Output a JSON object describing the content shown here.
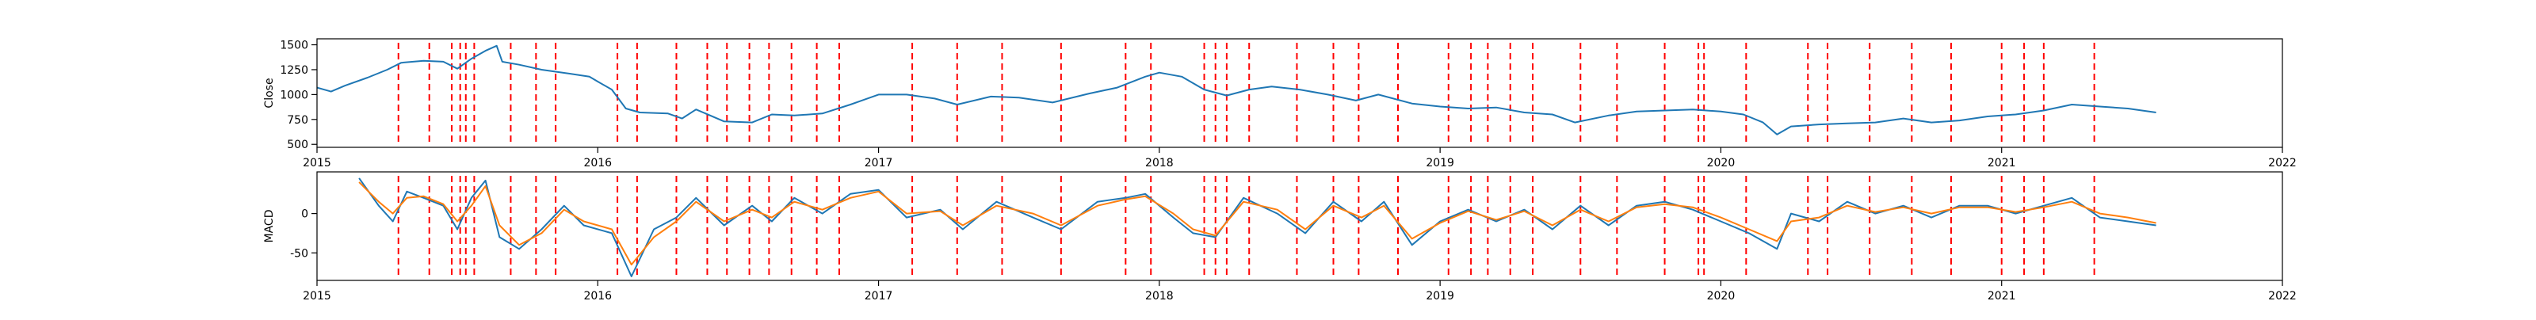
{
  "chart_data": [
    {
      "type": "line",
      "ylabel": "Close",
      "xlim": [
        2015.0,
        2022.0
      ],
      "ylim": [
        470,
        1560
      ],
      "x_ticks": [
        "2015",
        "2016",
        "2017",
        "2018",
        "2019",
        "2020",
        "2021",
        "2022"
      ],
      "y_ticks": [
        "500",
        "750",
        "1000",
        "1250",
        "1500"
      ],
      "series": [
        {
          "color": "#1f77b4",
          "points": [
            [
              2015.0,
              1070
            ],
            [
              2015.05,
              1030
            ],
            [
              2015.1,
              1090
            ],
            [
              2015.18,
              1170
            ],
            [
              2015.25,
              1250
            ],
            [
              2015.3,
              1320
            ],
            [
              2015.38,
              1340
            ],
            [
              2015.45,
              1330
            ],
            [
              2015.5,
              1260
            ],
            [
              2015.55,
              1360
            ],
            [
              2015.6,
              1440
            ],
            [
              2015.64,
              1490
            ],
            [
              2015.66,
              1330
            ],
            [
              2015.72,
              1300
            ],
            [
              2015.8,
              1250
            ],
            [
              2015.9,
              1210
            ],
            [
              2015.97,
              1180
            ],
            [
              2016.0,
              1130
            ],
            [
              2016.05,
              1050
            ],
            [
              2016.1,
              860
            ],
            [
              2016.15,
              820
            ],
            [
              2016.25,
              810
            ],
            [
              2016.3,
              760
            ],
            [
              2016.35,
              850
            ],
            [
              2016.45,
              730
            ],
            [
              2016.55,
              720
            ],
            [
              2016.62,
              800
            ],
            [
              2016.7,
              790
            ],
            [
              2016.8,
              810
            ],
            [
              2016.9,
              900
            ],
            [
              2017.0,
              1000
            ],
            [
              2017.1,
              1000
            ],
            [
              2017.2,
              960
            ],
            [
              2017.28,
              900
            ],
            [
              2017.4,
              980
            ],
            [
              2017.5,
              970
            ],
            [
              2017.62,
              920
            ],
            [
              2017.75,
              1010
            ],
            [
              2017.85,
              1070
            ],
            [
              2017.95,
              1180
            ],
            [
              2018.0,
              1220
            ],
            [
              2018.08,
              1180
            ],
            [
              2018.16,
              1050
            ],
            [
              2018.24,
              990
            ],
            [
              2018.32,
              1050
            ],
            [
              2018.4,
              1080
            ],
            [
              2018.5,
              1050
            ],
            [
              2018.6,
              1000
            ],
            [
              2018.7,
              940
            ],
            [
              2018.78,
              1000
            ],
            [
              2018.9,
              910
            ],
            [
              2019.0,
              880
            ],
            [
              2019.1,
              860
            ],
            [
              2019.2,
              870
            ],
            [
              2019.3,
              820
            ],
            [
              2019.4,
              800
            ],
            [
              2019.48,
              720
            ],
            [
              2019.6,
              790
            ],
            [
              2019.7,
              830
            ],
            [
              2019.8,
              840
            ],
            [
              2019.9,
              850
            ],
            [
              2020.0,
              830
            ],
            [
              2020.08,
              800
            ],
            [
              2020.15,
              720
            ],
            [
              2020.2,
              600
            ],
            [
              2020.25,
              680
            ],
            [
              2020.35,
              700
            ],
            [
              2020.45,
              710
            ],
            [
              2020.55,
              720
            ],
            [
              2020.65,
              760
            ],
            [
              2020.75,
              720
            ],
            [
              2020.85,
              740
            ],
            [
              2020.95,
              780
            ],
            [
              2021.05,
              800
            ],
            [
              2021.15,
              840
            ],
            [
              2021.25,
              900
            ],
            [
              2021.35,
              880
            ],
            [
              2021.45,
              860
            ],
            [
              2021.55,
              820
            ]
          ]
        }
      ]
    },
    {
      "type": "line",
      "ylabel": "MACD",
      "xlim": [
        2015.0,
        2022.0
      ],
      "ylim": [
        -85,
        53
      ],
      "x_ticks": [
        "2015",
        "2016",
        "2017",
        "2018",
        "2019",
        "2020",
        "2021",
        "2022"
      ],
      "y_ticks": [
        "-50",
        "0"
      ],
      "series": [
        {
          "color": "#1f77b4",
          "points": [
            [
              2015.15,
              45
            ],
            [
              2015.22,
              10
            ],
            [
              2015.27,
              -10
            ],
            [
              2015.32,
              28
            ],
            [
              2015.38,
              20
            ],
            [
              2015.45,
              10
            ],
            [
              2015.5,
              -20
            ],
            [
              2015.55,
              20
            ],
            [
              2015.6,
              42
            ],
            [
              2015.65,
              -30
            ],
            [
              2015.72,
              -45
            ],
            [
              2015.8,
              -20
            ],
            [
              2015.88,
              10
            ],
            [
              2015.95,
              -15
            ],
            [
              2016.05,
              -25
            ],
            [
              2016.12,
              -80
            ],
            [
              2016.2,
              -20
            ],
            [
              2016.28,
              -5
            ],
            [
              2016.35,
              20
            ],
            [
              2016.45,
              -15
            ],
            [
              2016.55,
              10
            ],
            [
              2016.62,
              -10
            ],
            [
              2016.7,
              20
            ],
            [
              2016.8,
              0
            ],
            [
              2016.9,
              25
            ],
            [
              2017.0,
              30
            ],
            [
              2017.1,
              -5
            ],
            [
              2017.22,
              5
            ],
            [
              2017.3,
              -20
            ],
            [
              2017.42,
              15
            ],
            [
              2017.55,
              -5
            ],
            [
              2017.65,
              -20
            ],
            [
              2017.78,
              15
            ],
            [
              2017.88,
              20
            ],
            [
              2017.95,
              25
            ],
            [
              2018.05,
              -5
            ],
            [
              2018.12,
              -25
            ],
            [
              2018.2,
              -30
            ],
            [
              2018.3,
              20
            ],
            [
              2018.42,
              0
            ],
            [
              2018.52,
              -25
            ],
            [
              2018.62,
              15
            ],
            [
              2018.72,
              -10
            ],
            [
              2018.8,
              15
            ],
            [
              2018.9,
              -40
            ],
            [
              2019.0,
              -10
            ],
            [
              2019.1,
              5
            ],
            [
              2019.2,
              -10
            ],
            [
              2019.3,
              5
            ],
            [
              2019.4,
              -20
            ],
            [
              2019.5,
              10
            ],
            [
              2019.6,
              -15
            ],
            [
              2019.7,
              10
            ],
            [
              2019.8,
              15
            ],
            [
              2019.9,
              5
            ],
            [
              2020.0,
              -10
            ],
            [
              2020.1,
              -25
            ],
            [
              2020.2,
              -45
            ],
            [
              2020.25,
              0
            ],
            [
              2020.35,
              -10
            ],
            [
              2020.45,
              15
            ],
            [
              2020.55,
              0
            ],
            [
              2020.65,
              10
            ],
            [
              2020.75,
              -5
            ],
            [
              2020.85,
              10
            ],
            [
              2020.95,
              10
            ],
            [
              2021.05,
              0
            ],
            [
              2021.15,
              10
            ],
            [
              2021.25,
              20
            ],
            [
              2021.35,
              -5
            ],
            [
              2021.45,
              -10
            ],
            [
              2021.55,
              -15
            ]
          ]
        },
        {
          "color": "#ff7f0e",
          "points": [
            [
              2015.15,
              40
            ],
            [
              2015.22,
              15
            ],
            [
              2015.27,
              0
            ],
            [
              2015.32,
              20
            ],
            [
              2015.38,
              22
            ],
            [
              2015.45,
              12
            ],
            [
              2015.5,
              -10
            ],
            [
              2015.55,
              10
            ],
            [
              2015.6,
              35
            ],
            [
              2015.65,
              -15
            ],
            [
              2015.72,
              -40
            ],
            [
              2015.8,
              -25
            ],
            [
              2015.88,
              5
            ],
            [
              2015.95,
              -10
            ],
            [
              2016.05,
              -20
            ],
            [
              2016.12,
              -65
            ],
            [
              2016.2,
              -30
            ],
            [
              2016.28,
              -10
            ],
            [
              2016.35,
              15
            ],
            [
              2016.45,
              -10
            ],
            [
              2016.55,
              5
            ],
            [
              2016.62,
              -5
            ],
            [
              2016.7,
              15
            ],
            [
              2016.8,
              5
            ],
            [
              2016.9,
              20
            ],
            [
              2017.0,
              28
            ],
            [
              2017.1,
              0
            ],
            [
              2017.22,
              3
            ],
            [
              2017.3,
              -15
            ],
            [
              2017.42,
              10
            ],
            [
              2017.55,
              0
            ],
            [
              2017.65,
              -15
            ],
            [
              2017.78,
              10
            ],
            [
              2017.88,
              18
            ],
            [
              2017.95,
              22
            ],
            [
              2018.05,
              0
            ],
            [
              2018.12,
              -20
            ],
            [
              2018.2,
              -28
            ],
            [
              2018.3,
              15
            ],
            [
              2018.42,
              5
            ],
            [
              2018.52,
              -20
            ],
            [
              2018.62,
              10
            ],
            [
              2018.72,
              -5
            ],
            [
              2018.8,
              10
            ],
            [
              2018.9,
              -32
            ],
            [
              2019.0,
              -12
            ],
            [
              2019.1,
              3
            ],
            [
              2019.2,
              -8
            ],
            [
              2019.3,
              3
            ],
            [
              2019.4,
              -15
            ],
            [
              2019.5,
              5
            ],
            [
              2019.6,
              -10
            ],
            [
              2019.7,
              8
            ],
            [
              2019.8,
              12
            ],
            [
              2019.9,
              8
            ],
            [
              2020.0,
              -5
            ],
            [
              2020.1,
              -20
            ],
            [
              2020.2,
              -35
            ],
            [
              2020.25,
              -10
            ],
            [
              2020.35,
              -5
            ],
            [
              2020.45,
              10
            ],
            [
              2020.55,
              2
            ],
            [
              2020.65,
              8
            ],
            [
              2020.75,
              0
            ],
            [
              2020.85,
              8
            ],
            [
              2020.95,
              8
            ],
            [
              2021.05,
              2
            ],
            [
              2021.15,
              8
            ],
            [
              2021.25,
              15
            ],
            [
              2021.35,
              0
            ],
            [
              2021.45,
              -5
            ],
            [
              2021.55,
              -12
            ]
          ]
        }
      ]
    }
  ],
  "signal_lines": {
    "color": "#ff0000",
    "x": [
      2015.29,
      2015.4,
      2015.48,
      2015.51,
      2015.53,
      2015.56,
      2015.69,
      2015.78,
      2015.85,
      2016.07,
      2016.14,
      2016.28,
      2016.39,
      2016.46,
      2016.54,
      2016.61,
      2016.69,
      2016.78,
      2016.86,
      2017.12,
      2017.28,
      2017.44,
      2017.65,
      2017.88,
      2017.97,
      2018.16,
      2018.2,
      2018.24,
      2018.32,
      2018.49,
      2018.62,
      2018.71,
      2018.85,
      2019.03,
      2019.11,
      2019.17,
      2019.25,
      2019.33,
      2019.5,
      2019.63,
      2019.8,
      2019.92,
      2019.94,
      2020.09,
      2020.31,
      2020.38,
      2020.53,
      2020.68,
      2020.82,
      2021.0,
      2021.08,
      2021.15,
      2021.33
    ]
  }
}
